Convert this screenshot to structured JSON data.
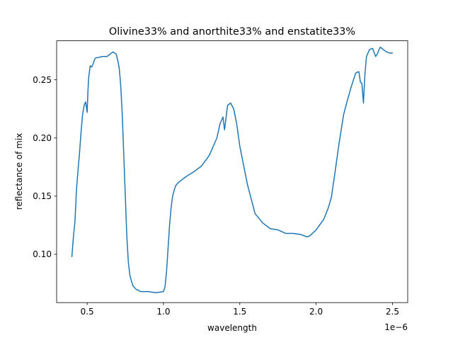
{
  "chart_data": {
    "type": "line",
    "title": "Olivine33% and anorthite33% and enstatite33%",
    "xlabel": "wavelength",
    "ylabel": "reflectance of mix",
    "x_offset_label": "1e−6",
    "xlim": [
      3e-07,
      2.6e-06
    ],
    "ylim": [
      0.0585,
      0.2835
    ],
    "x_ticks": [
      5e-07,
      1e-06,
      1.5e-06,
      2e-06,
      2.5e-06
    ],
    "x_tick_labels": [
      "0.5",
      "1.0",
      "1.5",
      "2.0",
      "2.5"
    ],
    "y_ticks": [
      0.1,
      0.15,
      0.2,
      0.25
    ],
    "y_tick_labels": [
      "0.10",
      "0.15",
      "0.20",
      "0.25"
    ],
    "grid": false,
    "colors": {
      "line": "#1f77b4"
    },
    "series": [
      {
        "x": [
          4e-07,
          4.1e-07,
          4.2e-07,
          4.3e-07,
          4.4e-07,
          4.5e-07,
          4.6e-07,
          4.7e-07,
          4.8e-07,
          4.9e-07,
          5e-07,
          5.05e-07,
          5.1e-07,
          5.15e-07,
          5.2e-07,
          5.3e-07,
          5.4e-07,
          5.5e-07,
          5.6e-07,
          5.7e-07,
          6e-07,
          6.3e-07,
          6.5e-07,
          6.7e-07,
          6.9e-07,
          7e-07,
          7.1e-07,
          7.2e-07,
          7.3e-07,
          7.4e-07,
          7.5e-07,
          7.6e-07,
          7.7e-07,
          7.8e-07,
          7.9e-07,
          8e-07,
          8.2e-07,
          8.5e-07,
          9e-07,
          9.5e-07,
          1e-06,
          1.01e-06,
          1.02e-06,
          1.03e-06,
          1.04e-06,
          1.05e-06,
          1.06e-06,
          1.07e-06,
          1.08e-06,
          1.1e-06,
          1.15e-06,
          1.2e-06,
          1.25e-06,
          1.3e-06,
          1.35e-06,
          1.37e-06,
          1.38e-06,
          1.39e-06,
          1.4e-06,
          1.42e-06,
          1.44e-06,
          1.46e-06,
          1.48e-06,
          1.5e-06,
          1.55e-06,
          1.6e-06,
          1.65e-06,
          1.7e-06,
          1.75e-06,
          1.8e-06,
          1.85e-06,
          1.9e-06,
          1.92e-06,
          1.94e-06,
          1.96e-06,
          2e-06,
          2.05e-06,
          2.08e-06,
          2.1e-06,
          2.12e-06,
          2.15e-06,
          2.18e-06,
          2.2e-06,
          2.23e-06,
          2.26e-06,
          2.28e-06,
          2.29e-06,
          2.3e-06,
          2.31e-06,
          2.32e-06,
          2.33e-06,
          2.35e-06,
          2.37e-06,
          2.39e-06,
          2.4e-06,
          2.42e-06,
          2.44e-06,
          2.46e-06,
          2.48e-06,
          2.5e-06
        ],
        "y": [
          0.098,
          0.115,
          0.128,
          0.155,
          0.172,
          0.187,
          0.205,
          0.22,
          0.228,
          0.231,
          0.222,
          0.24,
          0.252,
          0.257,
          0.262,
          0.261,
          0.264,
          0.268,
          0.269,
          0.269,
          0.27,
          0.27,
          0.272,
          0.274,
          0.272,
          0.267,
          0.26,
          0.245,
          0.22,
          0.185,
          0.15,
          0.115,
          0.093,
          0.082,
          0.077,
          0.073,
          0.07,
          0.068,
          0.068,
          0.067,
          0.068,
          0.072,
          0.085,
          0.105,
          0.125,
          0.14,
          0.15,
          0.155,
          0.159,
          0.162,
          0.167,
          0.171,
          0.176,
          0.185,
          0.2,
          0.212,
          0.215,
          0.218,
          0.207,
          0.228,
          0.23,
          0.225,
          0.212,
          0.193,
          0.16,
          0.135,
          0.127,
          0.122,
          0.121,
          0.118,
          0.118,
          0.117,
          0.116,
          0.115,
          0.116,
          0.121,
          0.13,
          0.14,
          0.149,
          0.167,
          0.195,
          0.22,
          0.23,
          0.244,
          0.256,
          0.257,
          0.248,
          0.247,
          0.23,
          0.255,
          0.27,
          0.276,
          0.277,
          0.27,
          0.272,
          0.278,
          0.276,
          0.274,
          0.273,
          0.273
        ]
      }
    ]
  }
}
